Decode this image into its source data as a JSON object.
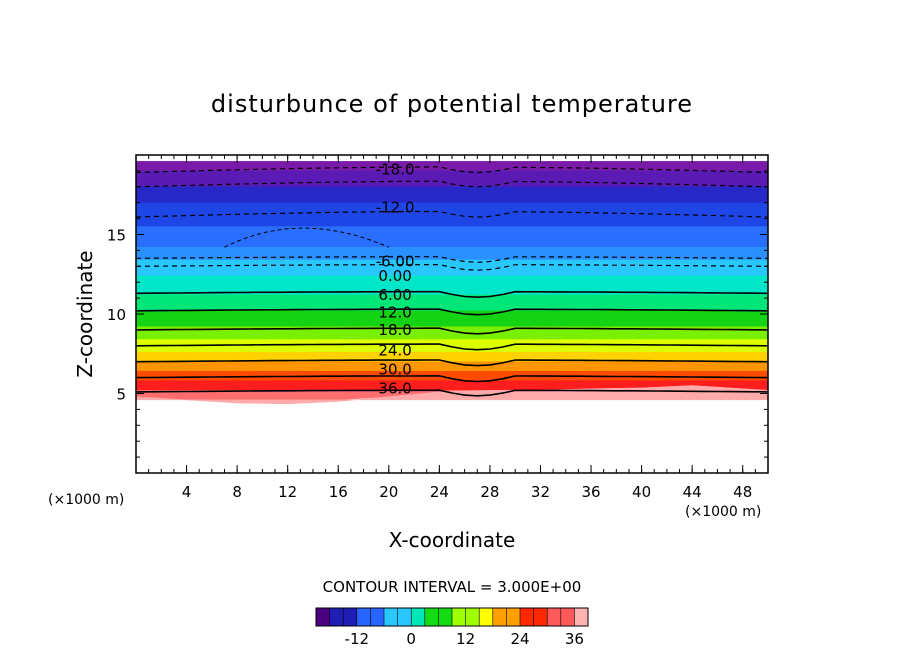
{
  "chart_data": {
    "type": "heatmap",
    "title": "disturbunce of potential temperature",
    "xlabel": "X-coordinate",
    "ylabel": "Z-coordinate",
    "x_unit": "(×1000 m)",
    "y_unit": "(×1000 m)",
    "xlim": [
      0,
      50
    ],
    "ylim": [
      0,
      20
    ],
    "x_ticks": [
      "4",
      "8",
      "12",
      "16",
      "20",
      "24",
      "28",
      "32",
      "36",
      "40",
      "44",
      "48"
    ],
    "y_ticks": [
      "5",
      "10",
      "15"
    ],
    "contour_interval_label": "CONTOUR INTERVAL = 3.000E+00",
    "colorbar": {
      "range": [
        -21,
        39
      ],
      "ticks": [
        "-12",
        "0",
        "12",
        "24",
        "36"
      ],
      "colors": [
        "#4b0082",
        "#1e1eb4",
        "#2864ff",
        "#28c8ff",
        "#00e6b4",
        "#14dc14",
        "#a0ff00",
        "#ffff00",
        "#ffa000",
        "#ff2800",
        "#ff5a5a",
        "#ffb4b4"
      ]
    },
    "contour_labels": [
      "-18.0",
      "-12.0",
      "-6.00",
      "0.00",
      "6.00",
      "12.0",
      "18.0",
      "24.0",
      "30.0",
      "36.0"
    ],
    "field_bottom_z": [
      4.8,
      4.6,
      4.4,
      4.35,
      4.5,
      4.8,
      5.1,
      5.2,
      5.2,
      5.3,
      5.35,
      5.5,
      5.2
    ],
    "profile_x": [
      0,
      4,
      8,
      12,
      16,
      20,
      24,
      28,
      32,
      36,
      40,
      44,
      50
    ],
    "field_top_z": 19.6
  }
}
